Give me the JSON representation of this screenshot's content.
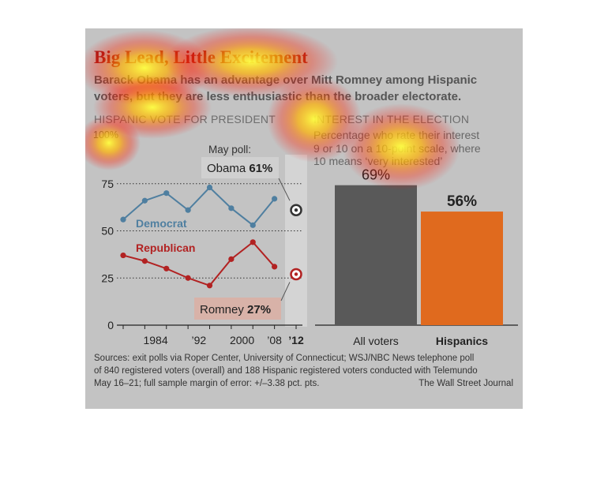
{
  "title": "Big Lead, Little Excitement",
  "subtitle_line1": "Barack Obama has an advantage over Mitt Romney among Hispanic",
  "subtitle_line2": "voters, but they are less enthusiastic than the broader electorate.",
  "left_heading": "HISPANIC VOTE FOR PRESIDENT",
  "y_top_label": "100%",
  "right_heading": "INTEREST IN THE ELECTION",
  "right_desc": [
    "Percentage who rate their interest",
    "9 or 10 on a 10-point scale, where",
    "10 means ‘very interested’"
  ],
  "source_lines": [
    "Sources: exit polls via Roper Center, University of Connecticut; WSJ/NBC News telephone poll",
    "of 840 registered voters (overall) and 188 Hispanic registered voters conducted with Telemundo",
    "May 16–21; full sample margin of error: +/–3.38 pct. pts."
  ],
  "credit": "The Wall Street Journal",
  "colors": {
    "title": "#9e1a1a",
    "democrat": "#4f7fa0",
    "republican": "#b22222",
    "bar_all": "#595959",
    "bar_hispanic": "#e06a1e"
  },
  "chart_data": [
    {
      "type": "line",
      "title": "HISPANIC VOTE FOR PRESIDENT",
      "x": [
        1980,
        1984,
        1988,
        1992,
        1996,
        2000,
        2004,
        2008
      ],
      "x_tick_labels": [
        "1984",
        "’92",
        "2000",
        "’08",
        "’12"
      ],
      "y_tick_labels": [
        "0",
        "25",
        "50",
        "75"
      ],
      "ylim": [
        0,
        100
      ],
      "series": [
        {
          "name": "Democrat",
          "values": [
            56,
            66,
            70,
            61,
            73,
            62,
            53,
            67
          ]
        },
        {
          "name": "Republican",
          "values": [
            37,
            34,
            30,
            25,
            21,
            35,
            44,
            31
          ]
        }
      ],
      "poll": {
        "x": 2012,
        "header": "May poll:",
        "obama": {
          "label": "Obama",
          "value_label": "61%",
          "value": 61
        },
        "romney": {
          "label": "Romney",
          "value_label": "27%",
          "value": 27
        }
      }
    },
    {
      "type": "bar",
      "title": "INTEREST IN THE ELECTION",
      "categories": [
        "All voters",
        "Hispanics"
      ],
      "values": [
        69,
        56
      ],
      "value_labels": [
        "69%",
        "56%"
      ]
    }
  ]
}
